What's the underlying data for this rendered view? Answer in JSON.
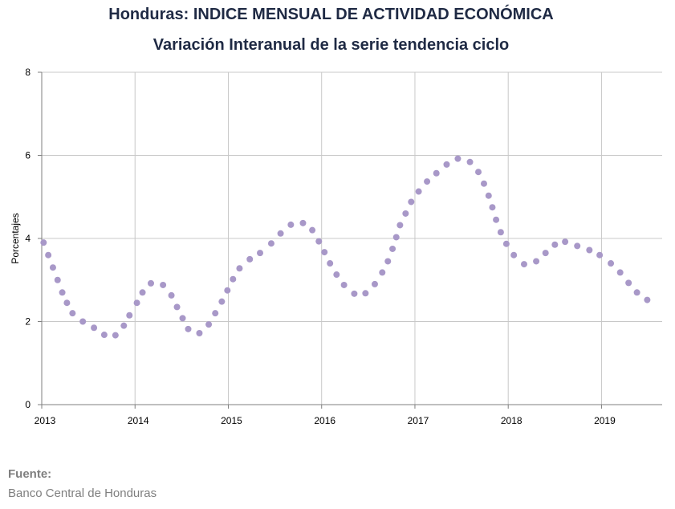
{
  "chart_data": {
    "type": "scatter",
    "title": "Honduras: INDICE MENSUAL DE ACTIVIDAD ECONÓMICA",
    "subtitle": "Variación Interanual de la serie tendencia ciclo",
    "xlabel": "",
    "ylabel": "Porcentajes",
    "xlim": [
      2013,
      2019.65
    ],
    "ylim": [
      0,
      8
    ],
    "x_ticks": [
      "2013",
      "2014",
      "2015",
      "2016",
      "2017",
      "2018",
      "2019"
    ],
    "y_ticks": [
      "0",
      "2",
      "4",
      "6",
      "8"
    ],
    "grid": true,
    "marker_color": "#a898c8",
    "series": [
      {
        "values": [
          [
            2013.02,
            3.9
          ],
          [
            2013.07,
            3.6
          ],
          [
            2013.12,
            3.3
          ],
          [
            2013.17,
            3.0
          ],
          [
            2013.22,
            2.7
          ],
          [
            2013.27,
            2.45
          ],
          [
            2013.33,
            2.2
          ],
          [
            2013.44,
            2.0
          ],
          [
            2013.56,
            1.85
          ],
          [
            2013.67,
            1.68
          ],
          [
            2013.79,
            1.67
          ],
          [
            2013.88,
            1.9
          ],
          [
            2013.94,
            2.15
          ],
          [
            2014.02,
            2.45
          ],
          [
            2014.08,
            2.7
          ],
          [
            2014.17,
            2.92
          ],
          [
            2014.3,
            2.88
          ],
          [
            2014.39,
            2.63
          ],
          [
            2014.45,
            2.35
          ],
          [
            2014.51,
            2.08
          ],
          [
            2014.57,
            1.82
          ],
          [
            2014.69,
            1.72
          ],
          [
            2014.79,
            1.93
          ],
          [
            2014.86,
            2.2
          ],
          [
            2014.93,
            2.48
          ],
          [
            2014.99,
            2.75
          ],
          [
            2015.05,
            3.02
          ],
          [
            2015.12,
            3.28
          ],
          [
            2015.23,
            3.5
          ],
          [
            2015.34,
            3.65
          ],
          [
            2015.46,
            3.88
          ],
          [
            2015.56,
            4.12
          ],
          [
            2015.67,
            4.33
          ],
          [
            2015.8,
            4.37
          ],
          [
            2015.9,
            4.2
          ],
          [
            2015.97,
            3.93
          ],
          [
            2016.03,
            3.67
          ],
          [
            2016.09,
            3.4
          ],
          [
            2016.16,
            3.13
          ],
          [
            2016.24,
            2.88
          ],
          [
            2016.35,
            2.67
          ],
          [
            2016.47,
            2.68
          ],
          [
            2016.57,
            2.9
          ],
          [
            2016.65,
            3.18
          ],
          [
            2016.71,
            3.45
          ],
          [
            2016.76,
            3.75
          ],
          [
            2016.8,
            4.03
          ],
          [
            2016.84,
            4.32
          ],
          [
            2016.9,
            4.6
          ],
          [
            2016.96,
            4.88
          ],
          [
            2017.04,
            5.13
          ],
          [
            2017.13,
            5.37
          ],
          [
            2017.23,
            5.57
          ],
          [
            2017.34,
            5.78
          ],
          [
            2017.46,
            5.92
          ],
          [
            2017.59,
            5.84
          ],
          [
            2017.68,
            5.6
          ],
          [
            2017.74,
            5.32
          ],
          [
            2017.79,
            5.03
          ],
          [
            2017.83,
            4.75
          ],
          [
            2017.87,
            4.45
          ],
          [
            2017.92,
            4.15
          ],
          [
            2017.98,
            3.87
          ],
          [
            2018.06,
            3.6
          ],
          [
            2018.17,
            3.38
          ],
          [
            2018.3,
            3.45
          ],
          [
            2018.4,
            3.65
          ],
          [
            2018.5,
            3.85
          ],
          [
            2018.61,
            3.92
          ],
          [
            2018.74,
            3.82
          ],
          [
            2018.87,
            3.72
          ],
          [
            2018.98,
            3.6
          ],
          [
            2019.1,
            3.4
          ],
          [
            2019.2,
            3.18
          ],
          [
            2019.29,
            2.93
          ],
          [
            2019.38,
            2.7
          ],
          [
            2019.49,
            2.52
          ]
        ]
      }
    ]
  },
  "source": {
    "label": "Fuente:",
    "value": "Banco Central de Honduras"
  }
}
